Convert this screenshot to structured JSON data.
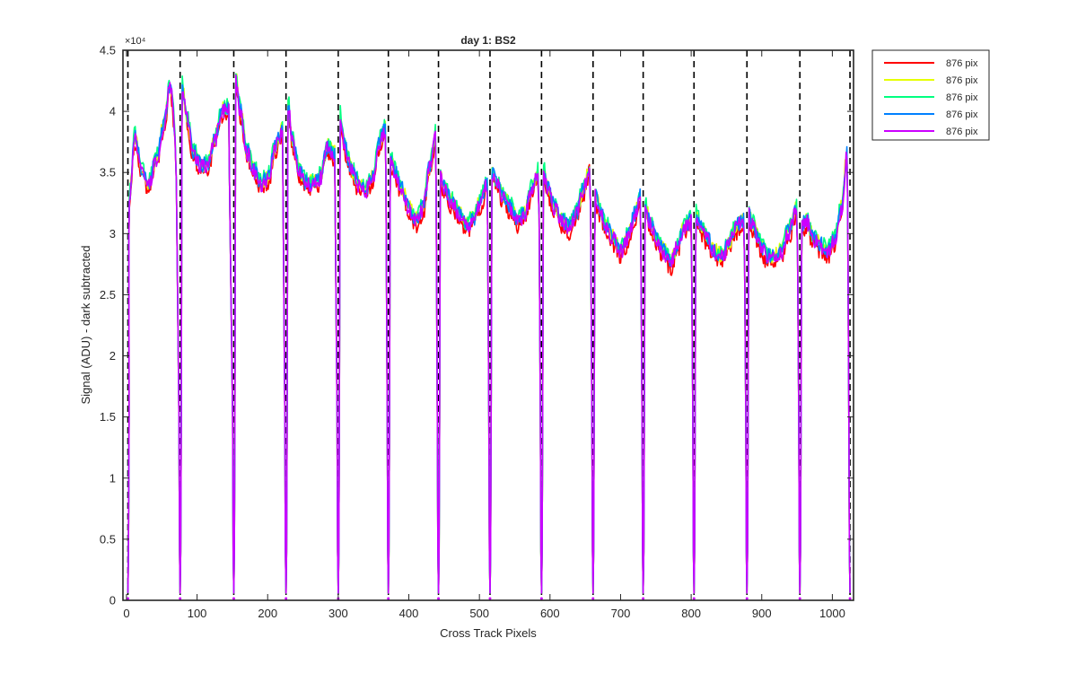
{
  "chart_data": {
    "type": "line",
    "title": "day 1: BS2",
    "xlabel": "Cross Track Pixels",
    "ylabel": "Signal (ADU) - dark subtracted",
    "y_exponent_label": "×10⁴",
    "xlim": [
      -5,
      1030
    ],
    "ylim": [
      0,
      45000
    ],
    "xticks": [
      0,
      100,
      200,
      300,
      400,
      500,
      600,
      700,
      800,
      900,
      1000
    ],
    "xtick_labels": [
      "0",
      "100",
      "200",
      "300",
      "400",
      "500",
      "600",
      "700",
      "800",
      "900",
      "1000"
    ],
    "yticks": [
      0,
      5000,
      10000,
      15000,
      20000,
      25000,
      30000,
      35000,
      40000,
      45000
    ],
    "ytick_labels": [
      "0",
      "0.5",
      "1",
      "1.5",
      "2",
      "2.5",
      "3",
      "3.5",
      "4",
      "4.5"
    ],
    "grid": false,
    "legend_position": "outside-top-right",
    "boundaries_style": "black dashed vertical lines",
    "segment_boundaries": [
      2,
      76,
      152,
      226,
      300,
      371,
      442,
      515,
      588,
      661,
      732,
      804,
      879,
      954,
      1025
    ],
    "segments": [
      {
        "x": [
          4,
          12,
          22,
          32,
          42,
          52,
          62,
          70
        ],
        "y": [
          33000,
          37800,
          35000,
          34000,
          36000,
          38500,
          42000,
          38000
        ]
      },
      {
        "x": [
          79,
          85,
          95,
          105,
          115,
          125,
          135,
          145
        ],
        "y": [
          42000,
          39500,
          36500,
          35500,
          35500,
          37500,
          40000,
          40000
        ]
      },
      {
        "x": [
          155,
          161,
          171,
          181,
          191,
          201,
          211,
          221
        ],
        "y": [
          42500,
          40000,
          36500,
          35000,
          34000,
          34500,
          37000,
          38500
        ]
      },
      {
        "x": [
          229,
          235,
          245,
          255,
          265,
          275,
          285,
          295
        ],
        "y": [
          40500,
          37500,
          35000,
          34000,
          34000,
          34500,
          37000,
          36500
        ]
      },
      {
        "x": [
          303,
          309,
          319,
          329,
          339,
          349,
          359,
          367
        ],
        "y": [
          39500,
          37000,
          35000,
          34000,
          33500,
          34500,
          37500,
          38500
        ]
      },
      {
        "x": [
          374,
          380,
          390,
          400,
          410,
          420,
          430,
          438
        ],
        "y": [
          36000,
          35000,
          33500,
          32000,
          31000,
          32000,
          35500,
          38000
        ]
      },
      {
        "x": [
          445,
          451,
          461,
          471,
          481,
          491,
          501,
          511
        ],
        "y": [
          34500,
          33500,
          32500,
          31500,
          30500,
          31000,
          32500,
          34000
        ]
      },
      {
        "x": [
          518,
          524,
          534,
          544,
          554,
          564,
          574,
          584
        ],
        "y": [
          35000,
          34000,
          33000,
          32000,
          31000,
          31500,
          33500,
          35000
        ]
      },
      {
        "x": [
          591,
          597,
          607,
          617,
          627,
          637,
          647,
          657
        ],
        "y": [
          35000,
          33500,
          32000,
          31000,
          30500,
          31500,
          33500,
          35500
        ]
      },
      {
        "x": [
          664,
          670,
          680,
          690,
          700,
          710,
          720,
          728
        ],
        "y": [
          33000,
          32000,
          30500,
          29500,
          28500,
          29500,
          31500,
          33000
        ]
      },
      {
        "x": [
          735,
          741,
          751,
          761,
          771,
          781,
          791,
          800
        ],
        "y": [
          32000,
          31000,
          29500,
          28500,
          27500,
          29000,
          30500,
          31000
        ]
      },
      {
        "x": [
          807,
          813,
          823,
          833,
          843,
          853,
          863,
          875
        ],
        "y": [
          31500,
          30500,
          29500,
          28500,
          28000,
          29000,
          30500,
          31000
        ]
      },
      {
        "x": [
          882,
          888,
          898,
          908,
          918,
          928,
          938,
          950
        ],
        "y": [
          31500,
          30500,
          29000,
          28000,
          28000,
          28500,
          30000,
          32000
        ]
      },
      {
        "x": [
          957,
          963,
          973,
          983,
          993,
          1003,
          1013,
          1021
        ],
        "y": [
          30500,
          31000,
          29500,
          29000,
          28500,
          29500,
          32000,
          36500
        ]
      }
    ],
    "series": [
      {
        "name": "876 pix",
        "color": "#ff0000",
        "offset": -400
      },
      {
        "name": "876 pix",
        "color": "#e6ff00",
        "offset": 200
      },
      {
        "name": "876 pix",
        "color": "#00ff80",
        "offset": 400
      },
      {
        "name": "876 pix",
        "color": "#0080ff",
        "offset": 150
      },
      {
        "name": "876 pix",
        "color": "#cc00ff",
        "offset": 0
      }
    ]
  }
}
